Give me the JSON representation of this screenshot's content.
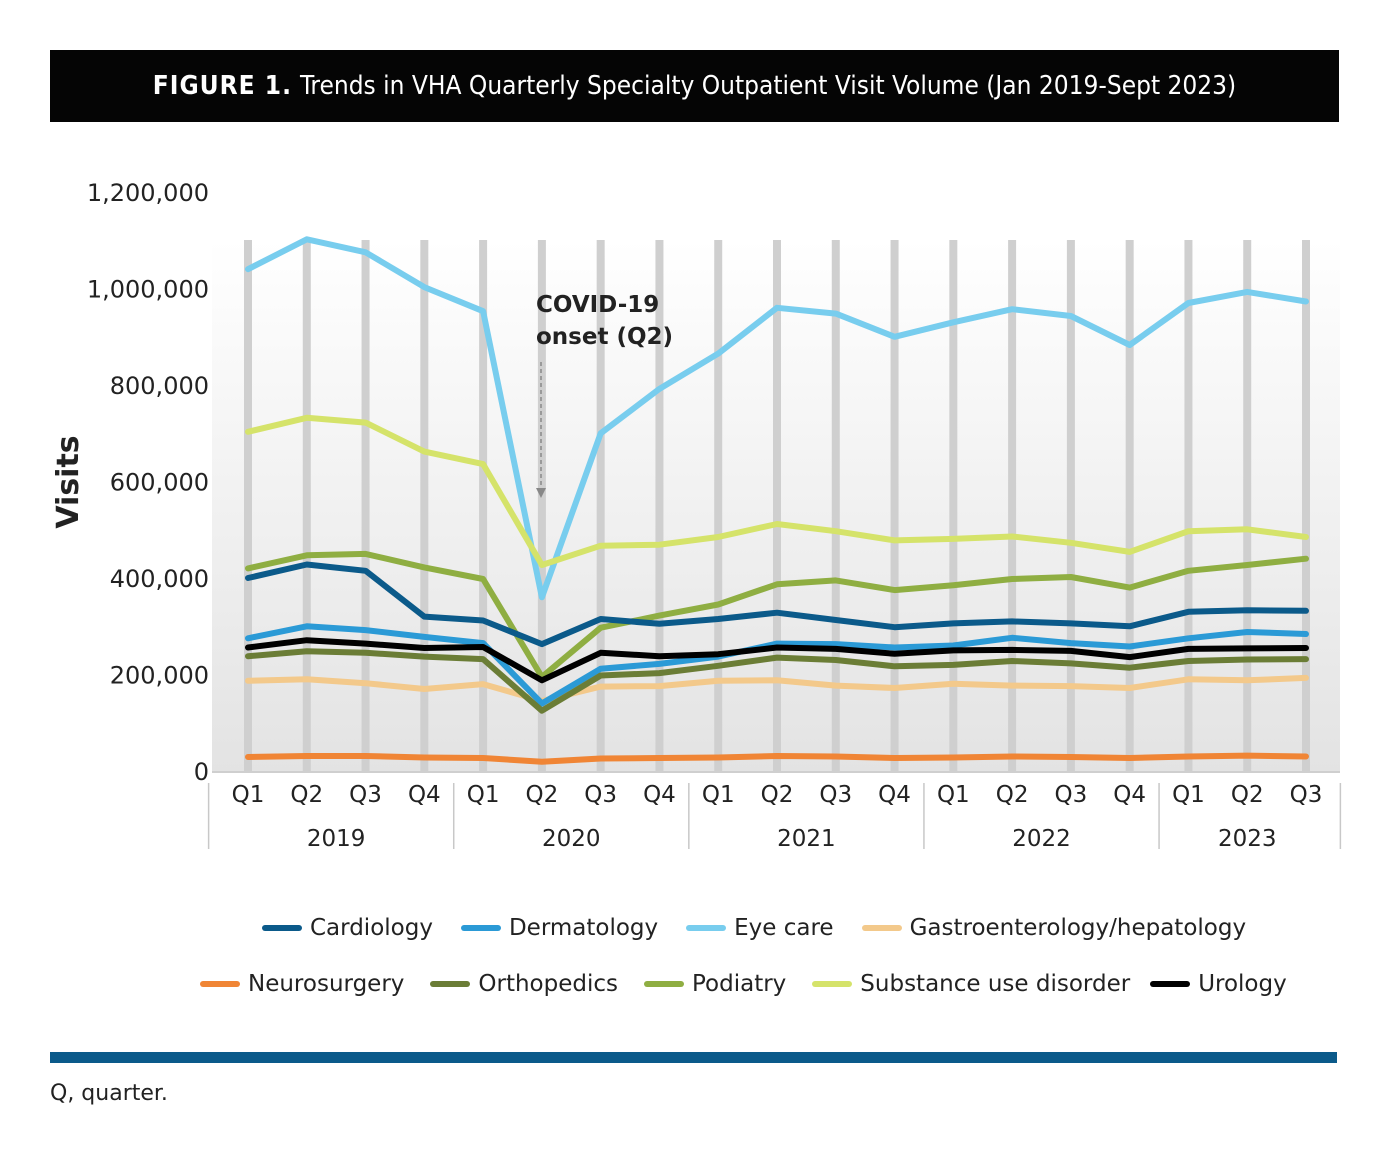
{
  "header": {
    "figure_label": "FIGURE 1.",
    "title": "Trends in VHA Quarterly Specialty Outpatient Visit Volume (Jan 2019-Sept 2023)"
  },
  "chart_data": {
    "type": "line",
    "ylabel": "Visits",
    "ylim": [
      0,
      1200000
    ],
    "y_ticks": [
      "1,200,000",
      "1,000,000",
      "800,000",
      "600,000",
      "400,000",
      "200,000",
      "0"
    ],
    "y_tick_values": [
      1200000,
      1000000,
      800000,
      600000,
      400000,
      200000,
      0
    ],
    "x": [
      "Q1",
      "Q2",
      "Q3",
      "Q4",
      "Q1",
      "Q2",
      "Q3",
      "Q4",
      "Q1",
      "Q2",
      "Q3",
      "Q4",
      "Q1",
      "Q2",
      "Q3",
      "Q4",
      "Q1",
      "Q2",
      "Q3"
    ],
    "years": [
      {
        "label": "2019",
        "quarters": 4
      },
      {
        "label": "2020",
        "quarters": 4
      },
      {
        "label": "2021",
        "quarters": 4
      },
      {
        "label": "2022",
        "quarters": 4
      },
      {
        "label": "2023",
        "quarters": 3
      }
    ],
    "grid": "vertical bars at each quarter",
    "legend_position": "bottom",
    "annotation": {
      "lines": [
        "COVID-19",
        "onset (Q2)"
      ],
      "target_index": 5,
      "arrow": "dashed down arrow"
    },
    "series": [
      {
        "name": "Cardiology",
        "color": "#0b5a8a",
        "values": [
          400000,
          428000,
          415000,
          320000,
          312000,
          263000,
          315000,
          305000,
          315000,
          328000,
          313000,
          298000,
          306000,
          310000,
          306000,
          300000,
          330000,
          333000,
          332000
        ]
      },
      {
        "name": "Dermatology",
        "color": "#2b9ad6",
        "values": [
          275000,
          300000,
          292000,
          278000,
          265000,
          140000,
          212000,
          222000,
          237000,
          264000,
          263000,
          256000,
          260000,
          276000,
          265000,
          258000,
          275000,
          288000,
          284000
        ]
      },
      {
        "name": "Eye care",
        "color": "#78cdee",
        "values": [
          1040000,
          1102000,
          1075000,
          1003000,
          953000,
          360000,
          700000,
          792000,
          865000,
          960000,
          948000,
          900000,
          930000,
          957000,
          943000,
          883000,
          970000,
          993000,
          973000
        ]
      },
      {
        "name": "Gastroenterology/hepatology",
        "color": "#f3c98b",
        "values": [
          187000,
          190000,
          182000,
          170000,
          180000,
          145000,
          175000,
          176000,
          187000,
          188000,
          177000,
          172000,
          181000,
          177000,
          176000,
          172000,
          190000,
          188000,
          193000
        ]
      },
      {
        "name": "Neurosurgery",
        "color": "#f08535",
        "values": [
          29000,
          31000,
          31000,
          28000,
          27000,
          19000,
          26000,
          27000,
          28000,
          31000,
          30000,
          27000,
          28000,
          30000,
          29000,
          27000,
          30000,
          32000,
          30000
        ]
      },
      {
        "name": "Orthopedics",
        "color": "#6b7d36",
        "values": [
          238000,
          248000,
          245000,
          237000,
          232000,
          125000,
          198000,
          203000,
          218000,
          235000,
          230000,
          217000,
          220000,
          228000,
          223000,
          214000,
          228000,
          231000,
          232000
        ]
      },
      {
        "name": "Podiatry",
        "color": "#8fae42",
        "values": [
          420000,
          447000,
          450000,
          422000,
          398000,
          195000,
          297000,
          322000,
          345000,
          387000,
          395000,
          375000,
          385000,
          398000,
          402000,
          380000,
          415000,
          427000,
          440000
        ]
      },
      {
        "name": "Substance use disorder",
        "color": "#d5e36a",
        "values": [
          703000,
          732000,
          722000,
          662000,
          636000,
          427000,
          467000,
          469000,
          485000,
          512000,
          497000,
          478000,
          481000,
          486000,
          473000,
          454000,
          497000,
          501000,
          485000
        ]
      },
      {
        "name": "Urology",
        "color": "#000000",
        "values": [
          256000,
          271000,
          264000,
          255000,
          257000,
          188000,
          245000,
          238000,
          242000,
          256000,
          253000,
          243000,
          250000,
          251000,
          249000,
          236000,
          253000,
          254000,
          255000
        ]
      }
    ]
  },
  "legend": {
    "row1": [
      "Cardiology",
      "Dermatology",
      "Eye care",
      "Gastroenterology/hepatology"
    ],
    "row1_colors": [
      "#0b5a8a",
      "#2b9ad6",
      "#78cdee",
      "#f3c98b"
    ],
    "row2": [
      "Neurosurgery",
      "Orthopedics",
      "Podiatry",
      "Substance use disorder",
      "Urology"
    ],
    "row2_colors": [
      "#f08535",
      "#6b7d36",
      "#8fae42",
      "#d5e36a",
      "#000000"
    ]
  },
  "footnote": "Q, quarter."
}
